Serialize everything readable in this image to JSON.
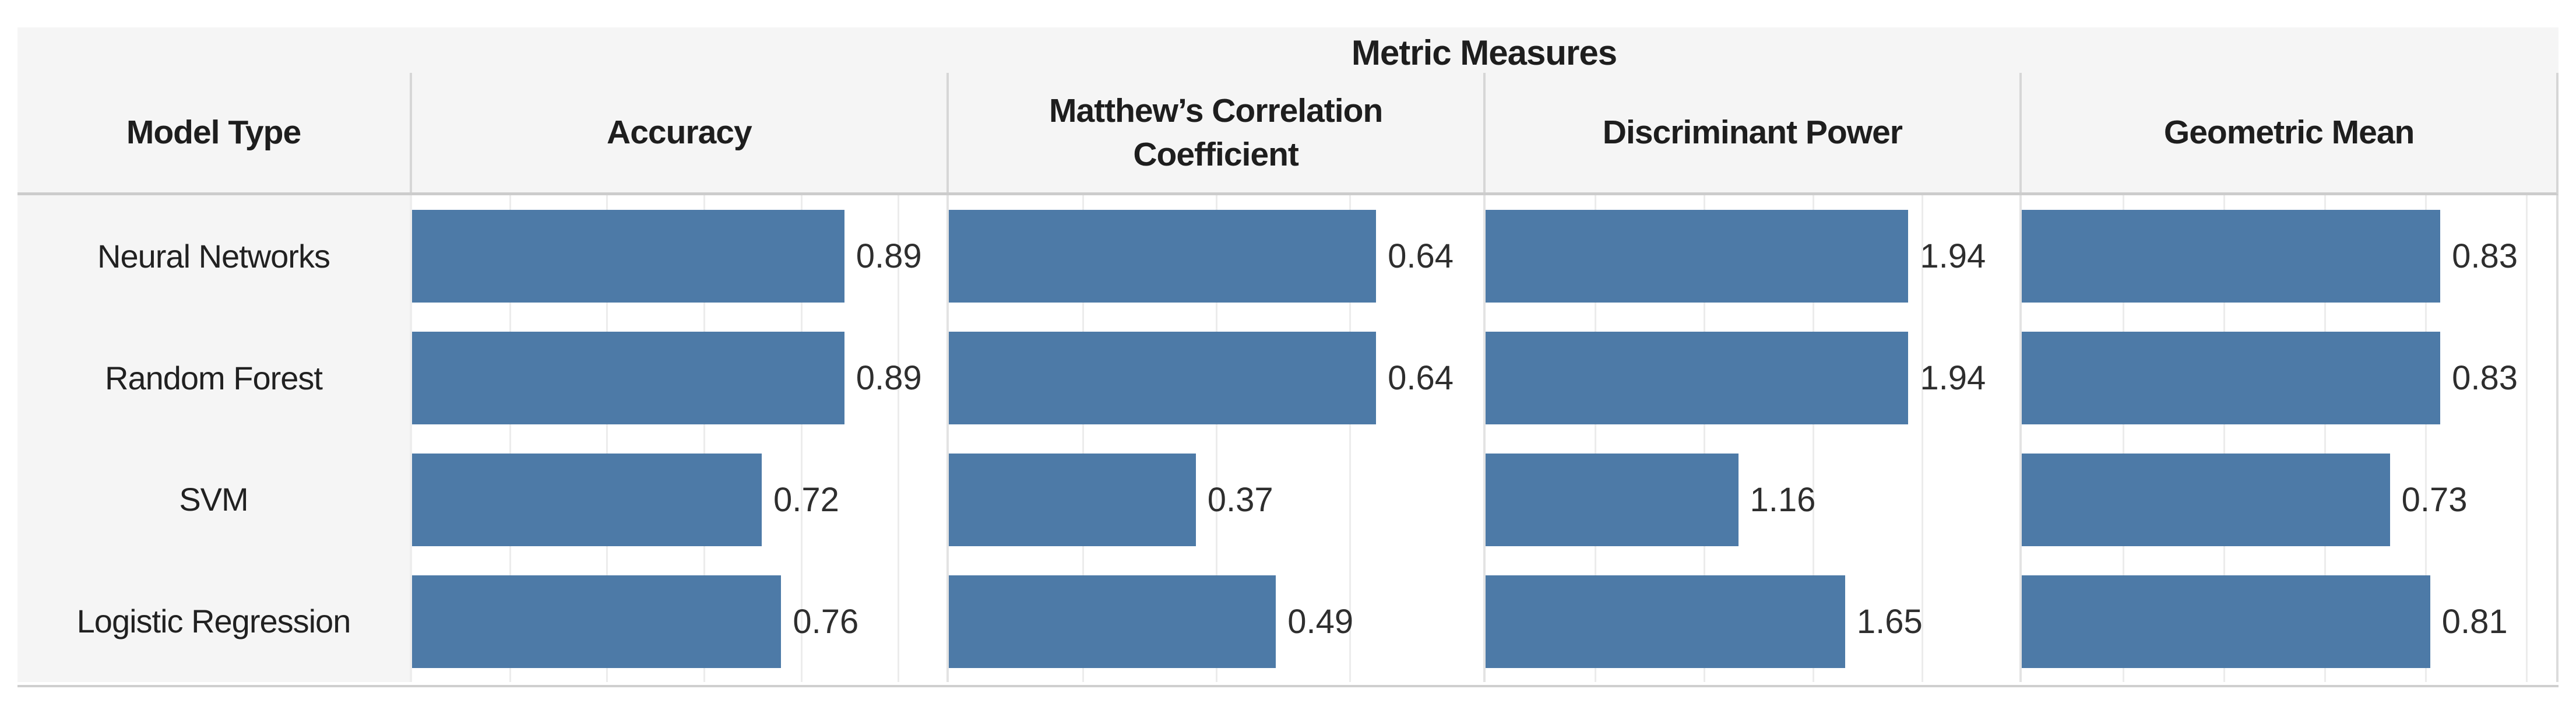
{
  "chart_data": {
    "type": "bar",
    "orientation": "horizontal",
    "title": "Metric Measures",
    "row_header": "Model Type",
    "categories": [
      "Neural Networks",
      "Random Forest",
      "SVM",
      "Logistic Regression"
    ],
    "metrics": [
      {
        "label": "Accuracy",
        "axis_min": 0,
        "axis_max": 1.1,
        "grid_step": 0.2,
        "values": [
          0.89,
          0.89,
          0.72,
          0.76
        ]
      },
      {
        "label": "Matthew’s Correlation Coefficient",
        "axis_min": 0,
        "axis_max": 0.8,
        "grid_step": 0.2,
        "values": [
          0.64,
          0.64,
          0.37,
          0.49
        ]
      },
      {
        "label": "Discriminant Power",
        "axis_min": 0,
        "axis_max": 2.45,
        "grid_step": 0.5,
        "values": [
          1.94,
          1.94,
          1.16,
          1.65
        ]
      },
      {
        "label": "Geometric Mean",
        "axis_min": 0,
        "axis_max": 1.06,
        "grid_step": 0.2,
        "values": [
          0.83,
          0.83,
          0.73,
          0.81
        ]
      }
    ],
    "value_labels": "outside-end",
    "grid": true,
    "legend": false
  },
  "colors": {
    "bar": "#4d7aa7",
    "header_bg": "#f5f5f5",
    "gridline": "#ececec",
    "header_divider": "#d6d6d6",
    "pane_divider": "#e3e3e3",
    "header_rule": "#cccccc",
    "bottom_rule": "#cfcfcf",
    "title_text": "#1e1e1e",
    "value_text": "#2e2e2e"
  }
}
